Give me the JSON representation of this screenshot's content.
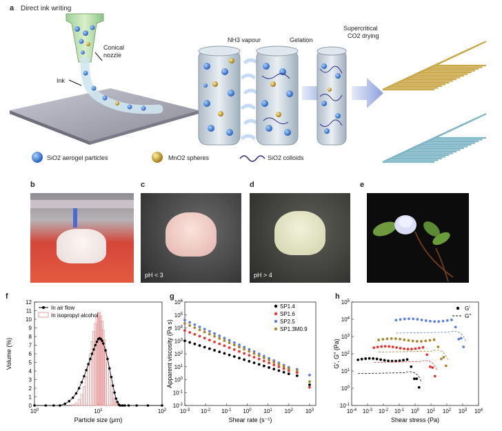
{
  "panel_a": {
    "label": "a",
    "title": "Direct ink writing",
    "nozzle_label": "Conical\nnozzle",
    "ink_label": "Ink",
    "step1": "NH3 vapour",
    "step2": "Gelation",
    "step3_line1": "Supercritical",
    "step3_line2": "CO2 drying",
    "legend": [
      {
        "icon": "sio2-aerogel-particle-icon",
        "label": "SiO2 aerogel particles",
        "color": "#2f6fd6"
      },
      {
        "icon": "mno2-sphere-icon",
        "label": "MnO2 spheres",
        "color": "#c9a020"
      },
      {
        "icon": "sio2-colloid-icon",
        "label": "SiO2 colloids",
        "color": "#2a2a8a"
      }
    ]
  },
  "panel_b": {
    "label": "b"
  },
  "panel_c": {
    "label": "c",
    "caption": "pH < 3"
  },
  "panel_d": {
    "label": "d",
    "caption": "pH > 4"
  },
  "panel_e": {
    "label": "e"
  },
  "chart_data": [
    {
      "panel": "f",
      "type": "bar",
      "xscale": "log",
      "xlabel": "Particle size (μm)",
      "ylabel": "Volume (%)",
      "xlim": [
        1,
        100
      ],
      "ylim": [
        0,
        12
      ],
      "xticks": [
        "10^0",
        "10^1",
        "10^2"
      ],
      "yticks": [
        0,
        1,
        2,
        3,
        4,
        5,
        6,
        7,
        8,
        9,
        10,
        11,
        12
      ],
      "legend": [
        "In air flow",
        "In isopropyl alcohol"
      ],
      "legend_position": "top-left",
      "series": [
        {
          "name": "In air flow",
          "style": "line-markers",
          "color": "#000000",
          "x": [
            1.0,
            1.5,
            2.0,
            2.5,
            3.0,
            3.5,
            4.0,
            4.5,
            5.0,
            5.5,
            6.0,
            6.5,
            7.0,
            7.5,
            8.0,
            8.5,
            9.0,
            9.5,
            10.0,
            10.5,
            11.0,
            11.5,
            12.0,
            13.0,
            14.0,
            15.0,
            16.0,
            17.0,
            18.0,
            19.0,
            20.0,
            21.0,
            22.0,
            24.0,
            26.0,
            30.0,
            40.0,
            60.0,
            100.0
          ],
          "y": [
            0,
            0,
            0,
            0,
            0.2,
            0.5,
            0.9,
            1.4,
            2.0,
            2.7,
            3.4,
            4.1,
            4.8,
            5.4,
            6.0,
            6.5,
            7.0,
            7.4,
            7.7,
            7.8,
            7.7,
            7.5,
            7.2,
            6.4,
            5.4,
            4.3,
            3.3,
            2.3,
            1.5,
            0.8,
            0.4,
            0.1,
            0,
            0,
            0,
            0,
            0,
            0,
            0
          ]
        },
        {
          "name": "In isopropyl alcohol",
          "style": "bars",
          "color": "#e79a9a",
          "x": [
            4.0,
            4.5,
            5.0,
            5.5,
            6.0,
            6.5,
            7.0,
            7.5,
            8.0,
            8.5,
            9.0,
            9.5,
            10.0,
            10.5,
            11.0,
            11.5,
            12.0,
            12.5,
            13.0,
            14.0,
            15.0,
            16.0,
            17.0,
            18.0,
            19.0,
            20.0,
            21.0
          ],
          "y": [
            0.1,
            0.3,
            0.7,
            1.3,
            2.2,
            3.3,
            4.6,
            6.0,
            7.4,
            8.6,
            9.5,
            10.3,
            10.8,
            10.8,
            10.4,
            9.8,
            8.8,
            7.6,
            6.3,
            4.9,
            3.6,
            2.4,
            1.5,
            0.8,
            0.4,
            0.15,
            0.05
          ]
        }
      ]
    },
    {
      "panel": "g",
      "type": "scatter",
      "xscale": "log",
      "yscale": "log",
      "xlabel": "Shear rate (s⁻¹)",
      "ylabel": "Apparent viscosity (Pa s)",
      "xlim_exp": [
        -3,
        3.3
      ],
      "ylim_exp": [
        -2,
        6
      ],
      "xticks": [
        "10^-3",
        "10^-2",
        "10^-1",
        "10^0",
        "10^1",
        "10^2",
        "10^3"
      ],
      "yticks": [
        "10^-2",
        "10^-1",
        "10^0",
        "10^1",
        "10^2",
        "10^3",
        "10^4",
        "10^5",
        "10^6"
      ],
      "legend_position": "top-right",
      "series": [
        {
          "name": "SP1.4",
          "color": "#000000",
          "start_log": 3.0,
          "end_log": 0.45,
          "tail_log": [
            0.3,
            -0.4
          ]
        },
        {
          "name": "SP1.6",
          "color": "#e8322f",
          "start_log": 3.8,
          "end_log": 0.7,
          "tail_log": [
            0.55,
            -0.6
          ]
        },
        {
          "name": "SP2.5",
          "color": "#5b7fd6",
          "start_log": 4.6,
          "end_log": 0.95,
          "tail_log": [
            0.8,
            0.35
          ]
        },
        {
          "name": "SP1.3M0.9",
          "color": "#a8862a",
          "start_log": 4.35,
          "end_log": 0.85,
          "tail_log": [
            0.7,
            -0.15
          ]
        }
      ]
    },
    {
      "panel": "h",
      "type": "scatter",
      "xscale": "log",
      "yscale": "log",
      "xlabel": "Shear stress (Pa)",
      "ylabel": "G′, G″ (Pa)",
      "xlim_exp": [
        -4,
        4
      ],
      "ylim_exp": [
        -1,
        5
      ],
      "xticks": [
        "10^-4",
        "10^-3",
        "10^-2",
        "10^-1",
        "10^0",
        "10^1",
        "10^2",
        "10^3",
        "10^4"
      ],
      "yticks": [
        "10^-1",
        "10^0",
        "10^1",
        "10^2",
        "10^3",
        "10^4",
        "10^5"
      ],
      "legend": [
        "G′",
        "G″"
      ],
      "legend_position": "top-right",
      "series": [
        {
          "name": "SP1.4",
          "color": "#000000",
          "plateau_log": 1.65,
          "x_start_log": -3.6,
          "x_break_log": -0.5,
          "loss_log": 0.85
        },
        {
          "name": "SP1.6",
          "color": "#e8322f",
          "plateau_log": 2.35,
          "x_start_log": -2.6,
          "x_break_log": 0.5,
          "loss_log": 1.5
        },
        {
          "name": "SP1.3M0.9",
          "color": "#a8862a",
          "plateau_log": 2.8,
          "x_start_log": -2.3,
          "x_break_log": 1.2,
          "loss_log": 2.1
        },
        {
          "name": "SP2.5",
          "color": "#5b7fd6",
          "plateau_log": 3.95,
          "x_start_log": -1.2,
          "x_break_log": 2.3,
          "loss_log": 3.2
        }
      ]
    }
  ]
}
